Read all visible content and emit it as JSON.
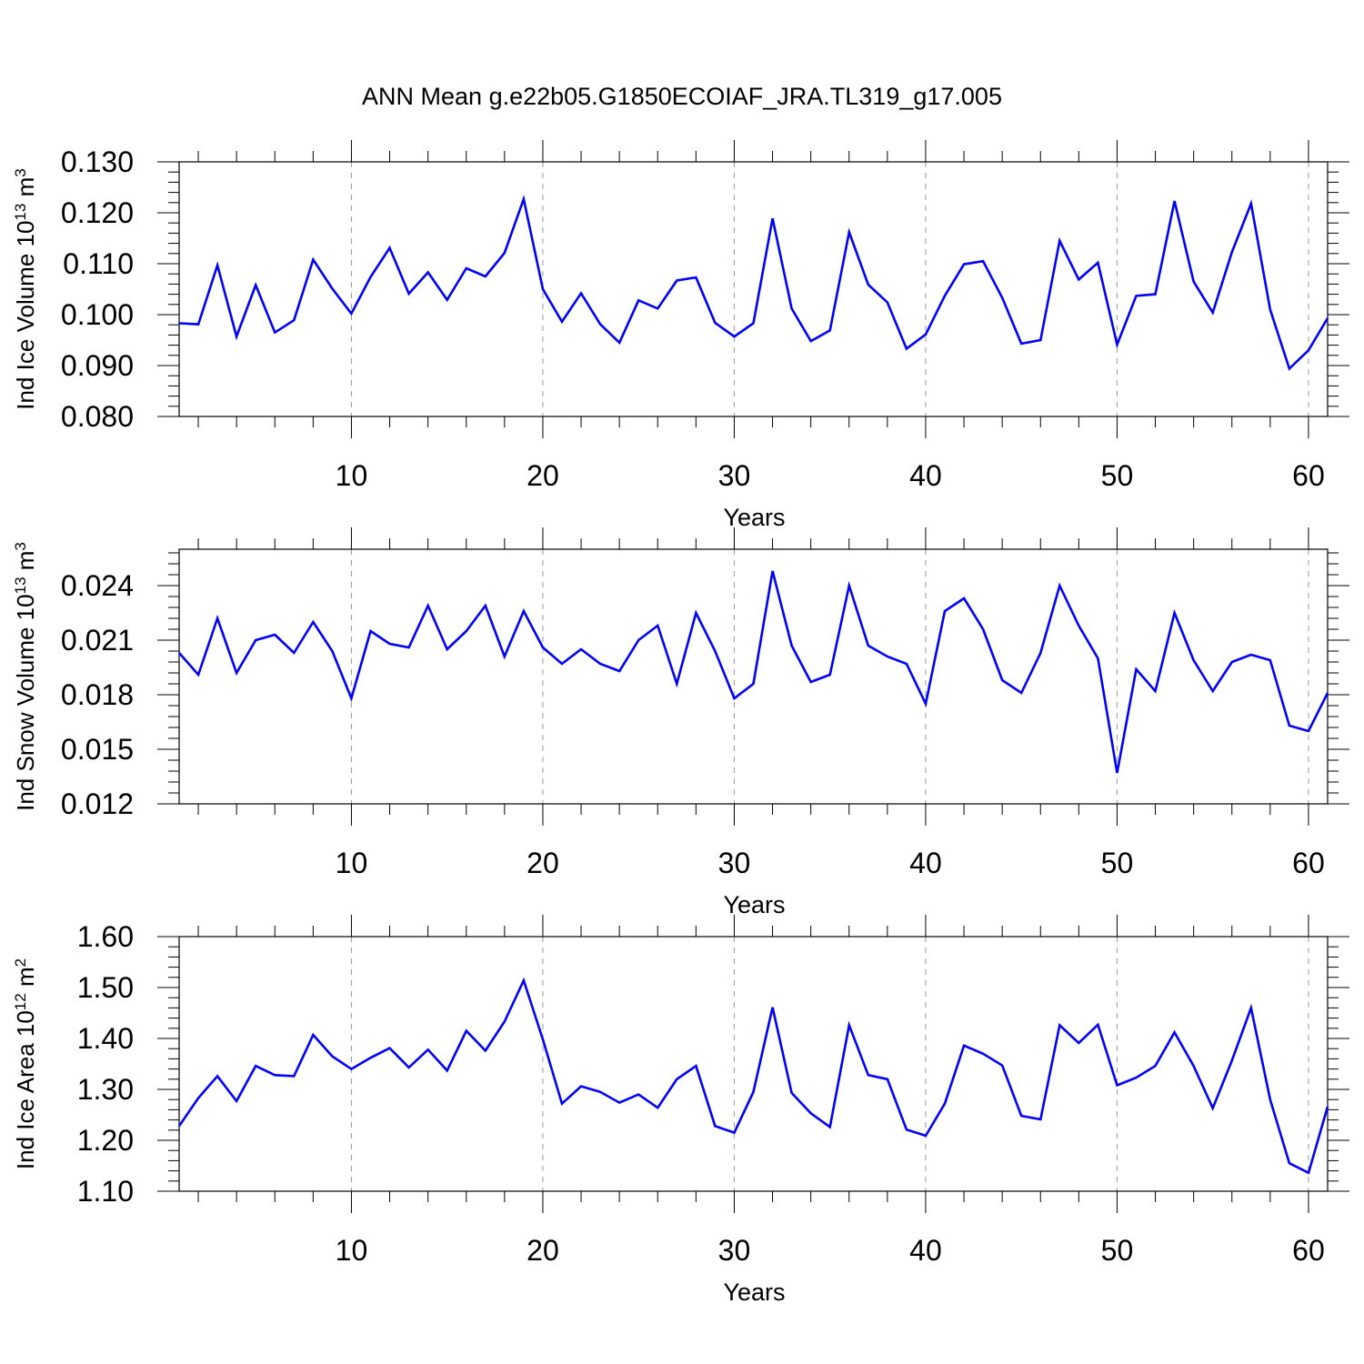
{
  "title": "ANN Mean g.e22b05.G1850ECOIAF_JRA.TL319_g17.005",
  "colors": {
    "line": "#0000ff",
    "axis": "#000000",
    "grid": "#999999"
  },
  "chart_data": [
    {
      "type": "line",
      "title": "ANN Mean g.e22b05.G1850ECOIAF_JRA.TL319_g17.005",
      "xlabel": "Years",
      "ylabel": {
        "text": "Ind Ice Volume 10",
        "exp": "13",
        "unit": " m",
        "unit_exp": "3"
      },
      "xlim": [
        1,
        61
      ],
      "ylim": [
        0.08,
        0.13
      ],
      "xticks": [
        10,
        20,
        30,
        40,
        50,
        60
      ],
      "yticks": [
        "0.080",
        "0.090",
        "0.100",
        "0.110",
        "0.120",
        "0.130"
      ],
      "grid": "vertical dashed at major x ticks",
      "series": [
        {
          "name": "Ind Ice Volume",
          "x": [
            1,
            2,
            3,
            4,
            5,
            6,
            7,
            8,
            9,
            10,
            11,
            12,
            13,
            14,
            15,
            16,
            17,
            18,
            19,
            20,
            21,
            22,
            23,
            24,
            25,
            26,
            27,
            28,
            29,
            30,
            31,
            32,
            33,
            34,
            35,
            36,
            37,
            38,
            39,
            40,
            41,
            42,
            43,
            44,
            45,
            46,
            47,
            48,
            49,
            50,
            51,
            52,
            53,
            54,
            55,
            56,
            57,
            58,
            59,
            60,
            61
          ],
          "values": [
            0.0983,
            0.0981,
            0.1097,
            0.0957,
            0.1058,
            0.0965,
            0.0989,
            0.1108,
            0.1051,
            0.1002,
            0.1074,
            0.1131,
            0.1041,
            0.1083,
            0.1029,
            0.1091,
            0.1075,
            0.1121,
            0.1227,
            0.105,
            0.0986,
            0.1042,
            0.0981,
            0.0945,
            0.1028,
            0.1012,
            0.1067,
            0.1073,
            0.0984,
            0.0957,
            0.0983,
            0.1189,
            0.1012,
            0.0948,
            0.0969,
            0.1162,
            0.1059,
            0.1024,
            0.0933,
            0.0961,
            0.1037,
            0.1099,
            0.1105,
            0.1033,
            0.0943,
            0.095,
            0.1145,
            0.1069,
            0.1102,
            0.0941,
            0.1037,
            0.104,
            0.1223,
            0.1065,
            0.1004,
            0.1123,
            0.1218,
            0.101,
            0.0894,
            0.093,
            0.0993
          ]
        }
      ]
    },
    {
      "type": "line",
      "xlabel": "Years",
      "ylabel": {
        "text": "Ind Snow Volume 10",
        "exp": "13",
        "unit": " m",
        "unit_exp": "3"
      },
      "xlim": [
        1,
        61
      ],
      "ylim": [
        0.012,
        0.026
      ],
      "xticks": [
        10,
        20,
        30,
        40,
        50,
        60
      ],
      "yticks": [
        "0.012",
        "0.015",
        "0.018",
        "0.021",
        "0.024"
      ],
      "grid": "vertical dashed at major x ticks",
      "series": [
        {
          "name": "Ind Snow Volume",
          "x": [
            1,
            2,
            3,
            4,
            5,
            6,
            7,
            8,
            9,
            10,
            11,
            12,
            13,
            14,
            15,
            16,
            17,
            18,
            19,
            20,
            21,
            22,
            23,
            24,
            25,
            26,
            27,
            28,
            29,
            30,
            31,
            32,
            33,
            34,
            35,
            36,
            37,
            38,
            39,
            40,
            41,
            42,
            43,
            44,
            45,
            46,
            47,
            48,
            49,
            50,
            51,
            52,
            53,
            54,
            55,
            56,
            57,
            58,
            59,
            60,
            61
          ],
          "values": [
            0.0203,
            0.0191,
            0.0222,
            0.0192,
            0.021,
            0.0213,
            0.0203,
            0.022,
            0.0204,
            0.0178,
            0.0215,
            0.0208,
            0.0206,
            0.0229,
            0.0205,
            0.0215,
            0.0229,
            0.0201,
            0.0226,
            0.0206,
            0.0197,
            0.0205,
            0.0197,
            0.0193,
            0.021,
            0.0218,
            0.0186,
            0.0225,
            0.0204,
            0.0178,
            0.0186,
            0.0248,
            0.0207,
            0.0187,
            0.0191,
            0.024,
            0.0207,
            0.0201,
            0.0197,
            0.0175,
            0.0226,
            0.0233,
            0.0216,
            0.0188,
            0.0181,
            0.0203,
            0.024,
            0.0218,
            0.02,
            0.0137,
            0.0194,
            0.0182,
            0.0225,
            0.0199,
            0.0182,
            0.0198,
            0.0202,
            0.0199,
            0.0163,
            0.016,
            0.0181
          ]
        }
      ]
    },
    {
      "type": "line",
      "xlabel": "Years",
      "ylabel": {
        "text": "Ind Ice Area 10",
        "exp": "12",
        "unit": " m",
        "unit_exp": "2"
      },
      "xlim": [
        1,
        61
      ],
      "ylim": [
        1.1,
        1.6
      ],
      "xticks": [
        10,
        20,
        30,
        40,
        50,
        60
      ],
      "yticks": [
        "1.10",
        "1.20",
        "1.30",
        "1.40",
        "1.50",
        "1.60"
      ],
      "grid": "vertical dashed at major x ticks",
      "series": [
        {
          "name": "Ind Ice Area",
          "x": [
            1,
            2,
            3,
            4,
            5,
            6,
            7,
            8,
            9,
            10,
            11,
            12,
            13,
            14,
            15,
            16,
            17,
            18,
            19,
            20,
            21,
            22,
            23,
            24,
            25,
            26,
            27,
            28,
            29,
            30,
            31,
            32,
            33,
            34,
            35,
            36,
            37,
            38,
            39,
            40,
            41,
            42,
            43,
            44,
            45,
            46,
            47,
            48,
            49,
            50,
            51,
            52,
            53,
            54,
            55,
            56,
            57,
            58,
            59,
            60,
            61
          ],
          "values": [
            1.228,
            1.283,
            1.326,
            1.277,
            1.346,
            1.328,
            1.326,
            1.407,
            1.365,
            1.34,
            1.362,
            1.381,
            1.343,
            1.378,
            1.337,
            1.415,
            1.376,
            1.433,
            1.514,
            1.398,
            1.272,
            1.306,
            1.295,
            1.274,
            1.29,
            1.264,
            1.32,
            1.346,
            1.228,
            1.215,
            1.295,
            1.461,
            1.293,
            1.253,
            1.226,
            1.426,
            1.328,
            1.32,
            1.221,
            1.209,
            1.272,
            1.386,
            1.37,
            1.347,
            1.248,
            1.241,
            1.426,
            1.391,
            1.427,
            1.308,
            1.323,
            1.346,
            1.412,
            1.346,
            1.263,
            1.357,
            1.46,
            1.28,
            1.155,
            1.136,
            1.266
          ]
        }
      ]
    }
  ]
}
